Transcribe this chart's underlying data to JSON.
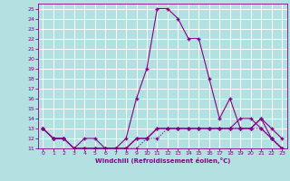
{
  "xlabel": "Windchill (Refroidissement éolien,°C)",
  "bg_color": "#b3e0e0",
  "grid_color": "#ffffff",
  "line_color": "#880088",
  "xlim": [
    -0.5,
    23.5
  ],
  "ylim": [
    11,
    25.5
  ],
  "xticks": [
    0,
    1,
    2,
    3,
    4,
    5,
    6,
    7,
    8,
    9,
    10,
    11,
    12,
    13,
    14,
    15,
    16,
    17,
    18,
    19,
    20,
    21,
    22,
    23
  ],
  "yticks": [
    11,
    12,
    13,
    14,
    15,
    16,
    17,
    18,
    19,
    20,
    21,
    22,
    23,
    24,
    25
  ],
  "line1_x": [
    0,
    1,
    2,
    3,
    4,
    5,
    6,
    7,
    8,
    9,
    10,
    11,
    12,
    13,
    14,
    15,
    16,
    17,
    18,
    19,
    20,
    21,
    22,
    23
  ],
  "line1_y": [
    13,
    12,
    12,
    11,
    12,
    12,
    11,
    11,
    12,
    16,
    19,
    25,
    25,
    24,
    22,
    22,
    18,
    14,
    16,
    13,
    13,
    14,
    12,
    11
  ],
  "line2_x": [
    0,
    1,
    2,
    3,
    4,
    5,
    6,
    7,
    8,
    9,
    10,
    11,
    12,
    13,
    14,
    15,
    16,
    17,
    18,
    19,
    20,
    21,
    22,
    23
  ],
  "line2_y": [
    13,
    12,
    12,
    11,
    11,
    11,
    11,
    11,
    11,
    11,
    12,
    12,
    13,
    13,
    13,
    13,
    13,
    13,
    13,
    13,
    13,
    13,
    12,
    11
  ],
  "line3_x": [
    0,
    1,
    2,
    3,
    4,
    5,
    6,
    7,
    8,
    9,
    10,
    11,
    12,
    13,
    14,
    15,
    16,
    17,
    18,
    19,
    20,
    21,
    22,
    23
  ],
  "line3_y": [
    13,
    12,
    12,
    11,
    11,
    11,
    11,
    11,
    11,
    12,
    12,
    13,
    13,
    13,
    13,
    13,
    13,
    13,
    13,
    13,
    13,
    14,
    13,
    12
  ],
  "line4_x": [
    0,
    1,
    2,
    3,
    4,
    5,
    6,
    7,
    8,
    9,
    10,
    11,
    12,
    13,
    14,
    15,
    16,
    17,
    18,
    19,
    20,
    21,
    22,
    23
  ],
  "line4_y": [
    13,
    12,
    12,
    11,
    11,
    11,
    11,
    11,
    11,
    12,
    12,
    13,
    13,
    13,
    13,
    13,
    13,
    13,
    13,
    14,
    14,
    13,
    12,
    11
  ]
}
